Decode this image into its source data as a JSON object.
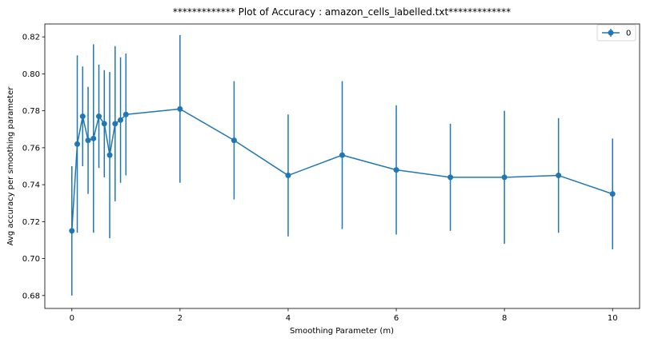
{
  "chart_data": {
    "type": "line",
    "title": "************* Plot of Accuracy : amazon_cells_labelled.txt*************",
    "xlabel": "Smoothing Parameter (m)",
    "ylabel": "Avg accuracy per smoothing parameter",
    "xlim": [
      -0.5,
      10.5
    ],
    "ylim": [
      0.673,
      0.827
    ],
    "xticks": [
      0,
      2,
      4,
      6,
      8,
      10
    ],
    "yticks": [
      0.68,
      0.7,
      0.72,
      0.74,
      0.76,
      0.78,
      0.8,
      0.82
    ],
    "ytick_labels": [
      "0.68",
      "0.70",
      "0.72",
      "0.74",
      "0.76",
      "0.78",
      "0.80",
      "0.82"
    ],
    "grid": false,
    "legend_position": "top-right",
    "series": [
      {
        "name": "0",
        "color": "#1f77b4",
        "marker": "circle",
        "errorbars": true,
        "x": [
          0,
          0.1,
          0.2,
          0.3,
          0.4,
          0.5,
          0.6,
          0.7,
          0.8,
          0.9,
          1,
          2,
          3,
          4,
          5,
          6,
          7,
          8,
          9,
          10
        ],
        "y": [
          0.715,
          0.762,
          0.777,
          0.764,
          0.765,
          0.777,
          0.773,
          0.756,
          0.773,
          0.775,
          0.778,
          0.781,
          0.764,
          0.745,
          0.756,
          0.748,
          0.744,
          0.744,
          0.745,
          0.735
        ],
        "err": [
          0.035,
          0.048,
          0.027,
          0.029,
          0.051,
          0.028,
          0.029,
          0.045,
          0.042,
          0.034,
          0.033,
          0.04,
          0.032,
          0.033,
          0.04,
          0.035,
          0.029,
          0.036,
          0.031,
          0.03
        ]
      }
    ]
  }
}
